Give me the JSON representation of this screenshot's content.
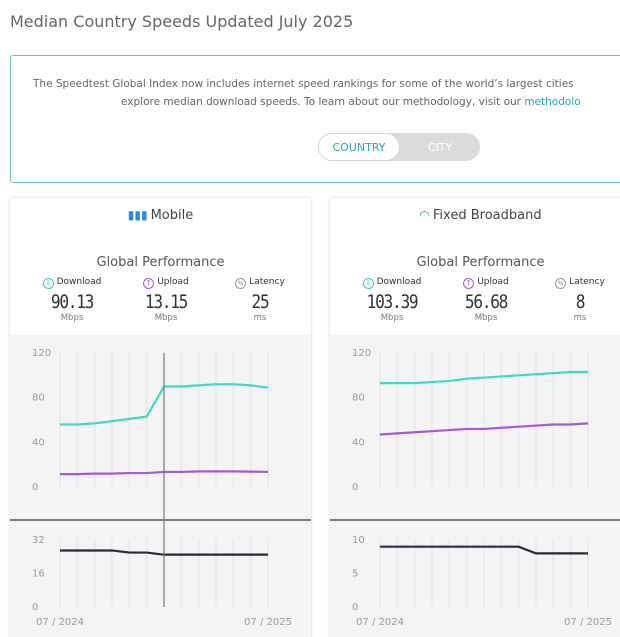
{
  "header": {
    "title": "Median Country Speeds Updated July 2025"
  },
  "info": {
    "line1": "The Speedtest Global Index now includes internet speed rankings for some of the world’s largest cities",
    "line2": "explore median download speeds. To learn about our methodology, visit our",
    "link": "methodolo"
  },
  "toggle": [
    "COUNTRY",
    "CITY"
  ],
  "panels": [
    {
      "title": "Mobile",
      "subtitle": "Global Performance",
      "stats": [
        {
          "label": "Download",
          "value": 90.13,
          "unit": "Mbps"
        },
        {
          "label": "Upload",
          "value": 13.15,
          "unit": "Mbps"
        },
        {
          "label": "Latency",
          "value": 25,
          "unit": "ms"
        }
      ],
      "chart_data": [
        {
          "type": "line",
          "ylim": [
            0,
            120
          ],
          "yticks": [
            0,
            40,
            80,
            120
          ],
          "series": [
            {
              "name": "Download",
              "color": "#3fd9c6",
              "values": [
                56,
                56,
                57,
                59,
                61,
                63,
                90,
                90,
                91,
                92,
                92,
                91,
                89
              ]
            },
            {
              "name": "Upload",
              "color": "#a558db",
              "values": [
                11.5,
                11.5,
                12,
                12,
                12.5,
                12.5,
                13.5,
                13.5,
                14,
                14,
                14,
                13.8,
                13.5
              ]
            }
          ]
        },
        {
          "type": "line",
          "ylim": [
            0,
            32
          ],
          "yticks": [
            0,
            16,
            32
          ],
          "categories": [
            "07 / 2024",
            null,
            null,
            null,
            null,
            null,
            null,
            null,
            null,
            null,
            null,
            null,
            "07 / 2025"
          ],
          "series": [
            {
              "name": "Latency",
              "color": "#262b3d",
              "values": [
                27,
                27,
                27,
                27,
                26,
                26,
                25,
                25,
                25,
                25,
                25,
                25,
                25
              ]
            }
          ]
        }
      ]
    },
    {
      "title": "Fixed Broadband",
      "subtitle": "Global Performance",
      "stats": [
        {
          "label": "Download",
          "value": 103.39,
          "unit": "Mbps"
        },
        {
          "label": "Upload",
          "value": 56.68,
          "unit": "Mbps"
        },
        {
          "label": "Latency",
          "value": 8,
          "unit": "ms"
        }
      ],
      "chart_data": [
        {
          "type": "line",
          "ylim": [
            0,
            120
          ],
          "yticks": [
            0,
            40,
            80,
            120
          ],
          "series": [
            {
              "name": "Download",
              "color": "#3fd9c6",
              "values": [
                93,
                93,
                93,
                94,
                95,
                97,
                98,
                99,
                100,
                101,
                102,
                103,
                103
              ]
            },
            {
              "name": "Upload",
              "color": "#a558db",
              "values": [
                47,
                48,
                49,
                50,
                51,
                52,
                52,
                53,
                54,
                55,
                56,
                56,
                57
              ]
            }
          ]
        },
        {
          "type": "line",
          "ylim": [
            0,
            10
          ],
          "yticks": [
            0,
            5,
            10
          ],
          "categories": [
            "07 / 2024",
            null,
            null,
            null,
            null,
            null,
            null,
            null,
            null,
            null,
            null,
            null,
            "07 / 2025"
          ],
          "series": [
            {
              "name": "Latency",
              "color": "#262b3d",
              "values": [
                9,
                9,
                9,
                9,
                9,
                9,
                9,
                9,
                9,
                8,
                8,
                8,
                8
              ]
            }
          ]
        }
      ]
    }
  ]
}
